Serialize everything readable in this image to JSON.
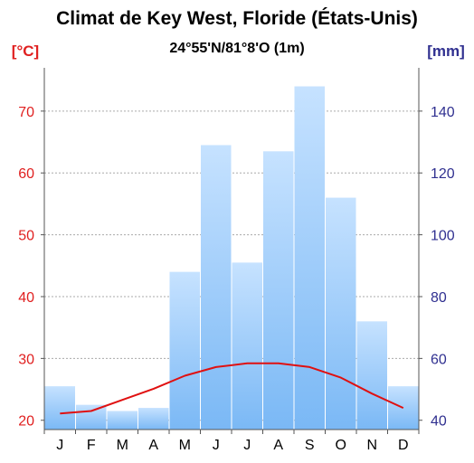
{
  "chart_data": {
    "type": "bar",
    "title": "Climat de Key West, Floride (États-Unis)",
    "subtitle": "24°55'N/81°8'O (1m)",
    "categories": [
      "J",
      "F",
      "M",
      "A",
      "M",
      "J",
      "J",
      "A",
      "S",
      "O",
      "N",
      "D"
    ],
    "left_axis": {
      "label": "[°C]",
      "ticks": [
        20,
        30,
        40,
        50,
        60,
        70
      ],
      "ylim": [
        18.5,
        77
      ]
    },
    "right_axis": {
      "label": "[mm]",
      "ticks": [
        40,
        60,
        80,
        100,
        120,
        140
      ],
      "ylim": [
        37,
        154
      ]
    },
    "series": [
      {
        "type": "bar",
        "axis": "right",
        "values": [
          51,
          45,
          43,
          44,
          88,
          129,
          91,
          127,
          148,
          112,
          72,
          51
        ]
      },
      {
        "type": "line",
        "axis": "left",
        "values": [
          21.1,
          21.5,
          23.3,
          25.1,
          27.2,
          28.6,
          29.2,
          29.2,
          28.6,
          26.9,
          24.3,
          22.0
        ]
      }
    ],
    "grid": true,
    "colors": {
      "bar_top": "#c6e2ff",
      "bar_bottom": "#7ab8f5",
      "line": "#e01010",
      "left_axis": "#e02020",
      "right_axis": "#303090",
      "grid": "#aaaaaa"
    }
  }
}
